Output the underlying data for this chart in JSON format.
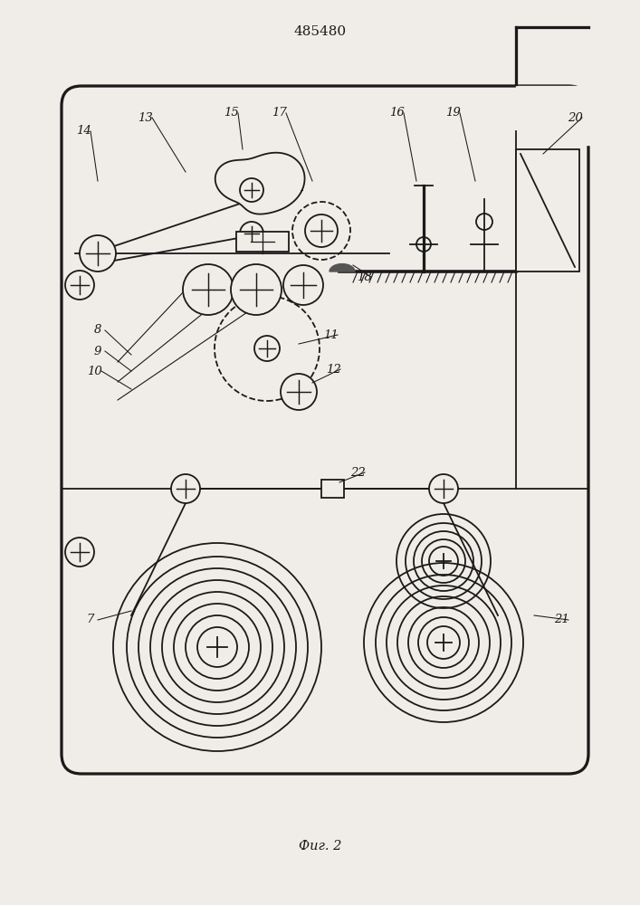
{
  "title": "485480",
  "caption": "Фиг. 2",
  "bg_color": "#f0ede8",
  "line_color": "#1a1a1a",
  "fig_width": 7.07,
  "fig_height": 10.0,
  "dpi": 100
}
